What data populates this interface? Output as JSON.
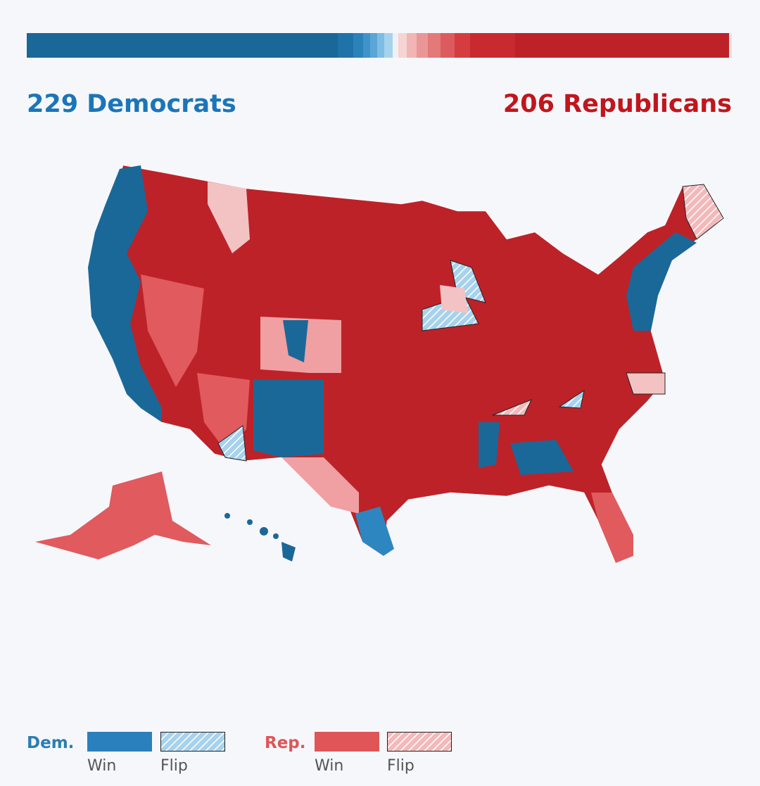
{
  "header": {
    "democrats": "229 Democrats",
    "republicans": "206 Republicans"
  },
  "legend": {
    "dem": {
      "label": "Dem.",
      "win": "Win",
      "flip": "Flip"
    },
    "rep": {
      "label": "Rep.",
      "win": "Win",
      "flip": "Flip"
    }
  }
}
